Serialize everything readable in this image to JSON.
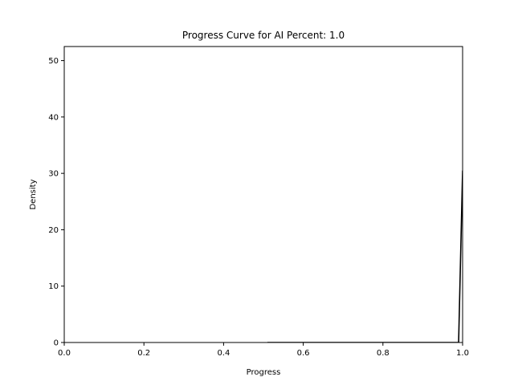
{
  "chart_data": {
    "type": "line",
    "title": "Progress Curve for AI Percent: 1.0",
    "xlabel": "Progress",
    "ylabel": "Density",
    "xlim": [
      0.0,
      1.0
    ],
    "ylim": [
      0,
      52.5
    ],
    "xticks": [
      "0.0",
      "0.2",
      "0.4",
      "0.6",
      "0.8",
      "1.0"
    ],
    "yticks": [
      "0",
      "10",
      "20",
      "30",
      "40",
      "50"
    ],
    "grid": false,
    "series": [
      {
        "color": "#000000",
        "x": [
          0.51,
          0.6,
          0.7,
          0.8,
          0.9,
          0.99,
          1.0
        ],
        "y": [
          0,
          0,
          0,
          0,
          0,
          0,
          30.5
        ]
      }
    ]
  }
}
